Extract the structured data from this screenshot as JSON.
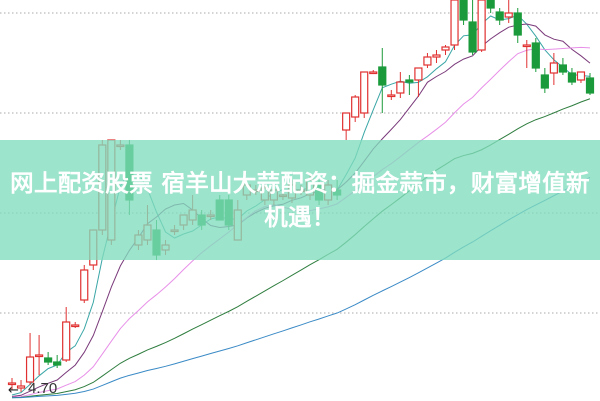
{
  "headline": "网上配资股票 宿羊山大蒜配资：掘金蒜市，财富增值新机遇！",
  "chart_data": {
    "type": "candlestick",
    "price_label": "4.70",
    "ylim": [
      4.46,
      12.46
    ],
    "grid": "horizontal dotted",
    "grid_levels": [
      6.2,
      8.2,
      10.2,
      12.2
    ],
    "colors": {
      "up": "#e03030",
      "down": "#1a9a3a",
      "ma_short": "#3aa6a6",
      "ma_mid": "#7a3a7a",
      "ma_long": "#e890e8",
      "ma_longer": "#2e7d3e",
      "ma_longest": "#3a8ac6"
    },
    "candles_ohlc": [
      [
        4.78,
        4.9,
        4.66,
        4.8
      ],
      [
        4.7,
        4.86,
        4.62,
        4.74
      ],
      [
        4.82,
        5.8,
        4.76,
        5.32
      ],
      [
        5.36,
        5.76,
        4.96,
        5.36
      ],
      [
        5.3,
        5.42,
        5.16,
        5.22
      ],
      [
        5.22,
        5.36,
        5.1,
        5.16
      ],
      [
        5.26,
        6.32,
        5.22,
        6.02
      ],
      [
        5.96,
        6.02,
        5.9,
        5.96
      ],
      [
        6.46,
        7.16,
        6.4,
        7.06
      ],
      [
        7.16,
        7.86,
        7.06,
        7.86
      ],
      [
        7.86,
        9.66,
        7.76,
        9.56
      ],
      [
        7.66,
        9.66,
        7.56,
        9.66
      ],
      [
        9.56,
        9.66,
        9.46,
        9.56
      ],
      [
        9.56,
        9.66,
        8.16,
        8.46
      ],
      [
        7.56,
        7.86,
        7.46,
        7.76
      ],
      [
        7.66,
        8.36,
        7.56,
        7.96
      ],
      [
        7.86,
        8.06,
        7.26,
        7.36
      ],
      [
        7.46,
        7.66,
        7.36,
        7.56
      ],
      [
        7.86,
        7.96,
        7.76,
        7.86
      ],
      [
        7.96,
        8.16,
        7.86,
        8.16
      ],
      [
        8.06,
        8.56,
        7.96,
        8.26
      ],
      [
        8.16,
        8.26,
        7.86,
        7.96
      ],
      [
        8.16,
        8.26,
        8.06,
        8.16
      ],
      [
        8.46,
        8.56,
        8.06,
        8.06
      ],
      [
        8.46,
        8.56,
        7.86,
        7.96
      ],
      [
        7.66,
        8.46,
        7.66,
        8.26
      ],
      [
        8.56,
        8.7,
        8.46,
        8.76
      ],
      [
        8.66,
        8.76,
        8.56,
        8.66
      ],
      [
        8.46,
        8.76,
        8.36,
        8.7
      ],
      [
        8.46,
        8.76,
        8.36,
        8.66
      ],
      [
        8.56,
        8.66,
        8.46,
        8.56
      ],
      [
        8.5,
        8.86,
        8.4,
        8.76
      ],
      [
        8.66,
        8.76,
        8.56,
        8.66
      ],
      [
        8.56,
        8.96,
        8.46,
        8.86
      ],
      [
        8.76,
        8.86,
        8.36,
        8.46
      ],
      [
        8.46,
        8.86,
        8.36,
        8.76
      ],
      [
        8.66,
        8.86,
        8.46,
        8.56
      ],
      [
        9.86,
        10.2,
        9.66,
        10.2
      ],
      [
        10.12,
        10.56,
        10.02,
        10.52
      ],
      [
        10.2,
        11.02,
        10.1,
        11.02
      ],
      [
        11.02,
        11.06,
        11.0,
        11.02
      ],
      [
        11.12,
        11.5,
        10.2,
        10.76
      ],
      [
        10.56,
        10.66,
        10.46,
        10.56
      ],
      [
        10.6,
        11.02,
        10.5,
        10.82
      ],
      [
        10.86,
        10.96,
        10.56,
        10.82
      ],
      [
        10.86,
        11.06,
        10.52,
        11.1
      ],
      [
        11.16,
        11.4,
        11.1,
        11.32
      ],
      [
        11.32,
        11.46,
        11.2,
        11.36
      ],
      [
        11.46,
        11.56,
        11.36,
        11.52
      ],
      [
        11.56,
        12.46,
        11.46,
        12.46
      ],
      [
        12.46,
        12.46,
        11.96,
        12.06
      ],
      [
        12.02,
        12.46,
        11.36,
        11.42
      ],
      [
        11.46,
        12.46,
        11.42,
        12.46
      ],
      [
        12.46,
        12.46,
        12.2,
        12.3
      ],
      [
        12.22,
        12.3,
        11.96,
        12.06
      ],
      [
        12.12,
        12.46,
        12.0,
        12.2
      ],
      [
        12.2,
        12.3,
        11.6,
        11.76
      ],
      [
        11.56,
        11.66,
        11.1,
        11.56
      ],
      [
        11.6,
        11.7,
        11.02,
        11.1
      ],
      [
        10.96,
        11.1,
        10.6,
        10.7
      ],
      [
        11.0,
        11.4,
        10.76,
        11.2
      ],
      [
        11.16,
        11.3,
        10.96,
        11.02
      ],
      [
        11.0,
        11.1,
        10.76,
        10.82
      ],
      [
        10.86,
        11.02,
        10.8,
        11.02
      ],
      [
        10.9,
        11.0,
        10.56,
        10.6
      ]
    ]
  }
}
